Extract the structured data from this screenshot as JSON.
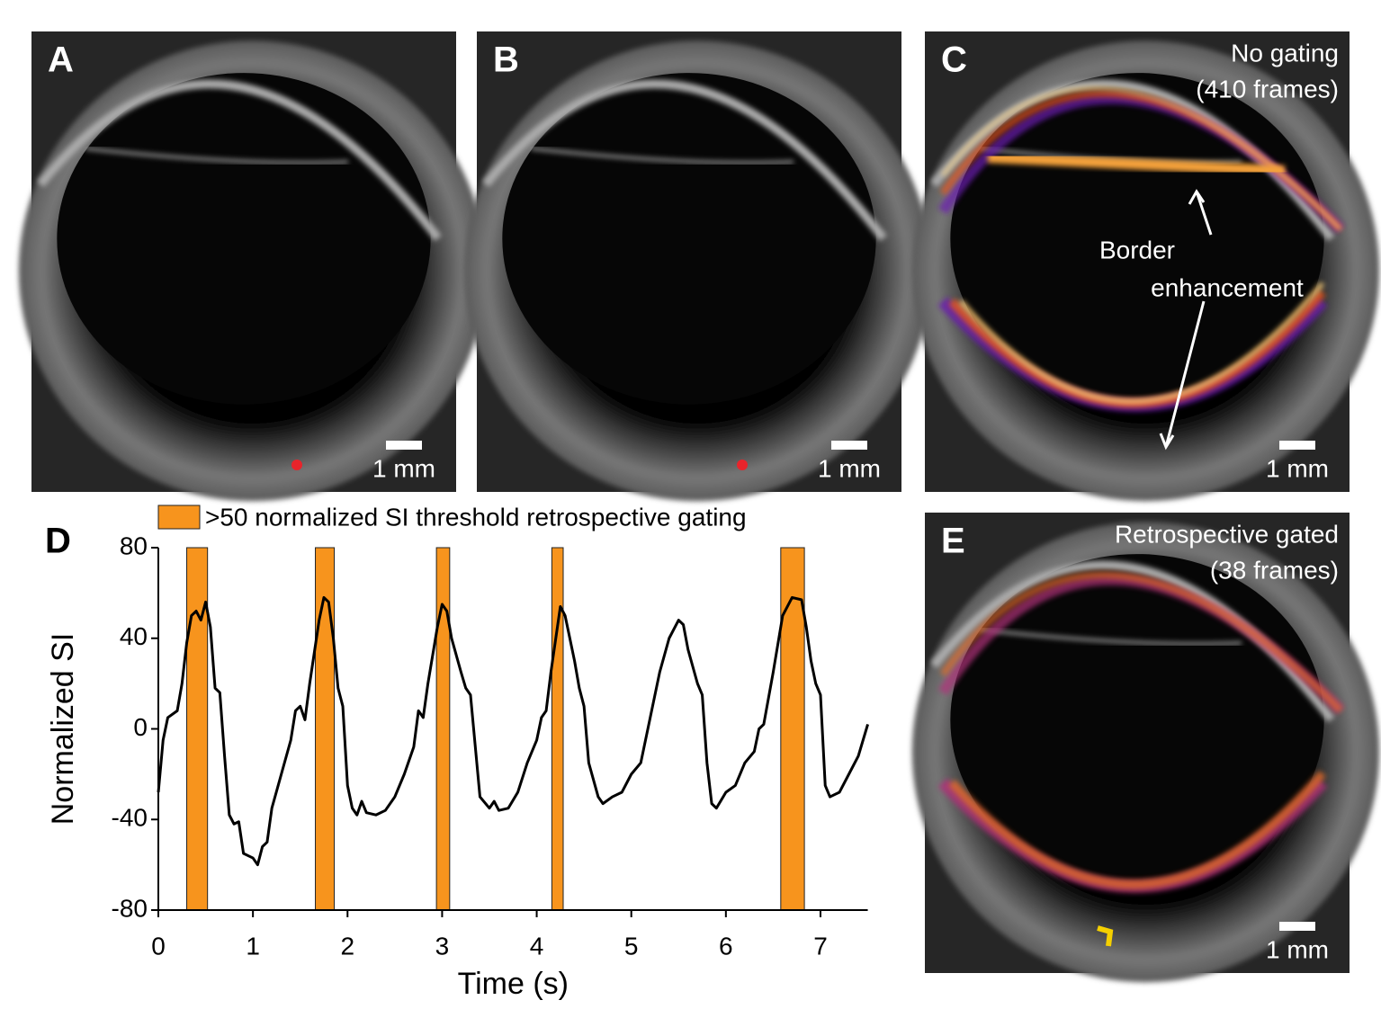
{
  "panels": [
    {
      "label": "A",
      "scale_bar": "1 mm"
    },
    {
      "label": "B",
      "scale_bar": "1 mm"
    },
    {
      "label": "C",
      "scale_bar": "1 mm",
      "annotation": [
        "No gating",
        "(410 frames)"
      ],
      "callout": [
        "Border",
        "enhancement"
      ]
    },
    {
      "label": "E",
      "scale_bar": "1 mm",
      "annotation": [
        "Retrospective gated",
        "(38 frames)"
      ]
    }
  ],
  "chart_data": {
    "type": "line",
    "panel_label": "D",
    "x_label": "Time (s)",
    "y_label": "Normalized SI",
    "bands": {
      "name": ">50 normalized SI threshold retrospective gating",
      "color": "#f7941d",
      "ranges": [
        [
          0.3,
          0.52
        ],
        [
          1.66,
          1.86
        ],
        [
          2.94,
          3.08
        ],
        [
          4.16,
          4.28
        ],
        [
          6.58,
          6.83
        ]
      ]
    },
    "x": [
      0,
      0.05,
      0.1,
      0.2,
      0.25,
      0.3,
      0.35,
      0.4,
      0.45,
      0.5,
      0.55,
      0.6,
      0.65,
      0.7,
      0.75,
      0.8,
      0.85,
      0.9,
      0.95,
      1.0,
      1.05,
      1.1,
      1.15,
      1.2,
      1.3,
      1.4,
      1.45,
      1.5,
      1.55,
      1.6,
      1.7,
      1.75,
      1.8,
      1.85,
      1.9,
      1.95,
      2.0,
      2.05,
      2.1,
      2.15,
      2.2,
      2.3,
      2.4,
      2.5,
      2.6,
      2.7,
      2.75,
      2.8,
      2.85,
      2.95,
      3.0,
      3.05,
      3.1,
      3.2,
      3.25,
      3.3,
      3.4,
      3.5,
      3.55,
      3.6,
      3.7,
      3.8,
      3.9,
      4.0,
      4.05,
      4.1,
      4.15,
      4.25,
      4.3,
      4.4,
      4.45,
      4.5,
      4.55,
      4.65,
      4.7,
      4.8,
      4.9,
      5.0,
      5.1,
      5.2,
      5.3,
      5.4,
      5.5,
      5.55,
      5.6,
      5.7,
      5.75,
      5.8,
      5.85,
      5.9,
      6.0,
      6.1,
      6.2,
      6.3,
      6.35,
      6.4,
      6.5,
      6.6,
      6.7,
      6.8,
      6.85,
      6.9,
      6.95,
      7.0,
      7.05,
      7.1,
      7.2,
      7.3,
      7.4,
      7.5
    ],
    "series": [
      {
        "color": "#000000",
        "values": [
          -28,
          -5,
          5,
          8,
          20,
          38,
          50,
          52,
          48,
          56,
          45,
          18,
          16,
          -12,
          -38,
          -42,
          -41,
          -55,
          -56,
          -57,
          -60,
          -52,
          -50,
          -35,
          -20,
          -5,
          8,
          10,
          4,
          20,
          48,
          58,
          56,
          40,
          18,
          10,
          -25,
          -35,
          -38,
          -32,
          -37,
          -38,
          -36,
          -30,
          -20,
          -8,
          8,
          5,
          20,
          45,
          55,
          52,
          40,
          25,
          18,
          15,
          -30,
          -35,
          -32,
          -36,
          -35,
          -28,
          -15,
          -5,
          5,
          8,
          25,
          54,
          50,
          30,
          18,
          10,
          -15,
          -30,
          -33,
          -30,
          -28,
          -20,
          -15,
          5,
          25,
          40,
          48,
          46,
          35,
          20,
          15,
          -15,
          -33,
          -35,
          -28,
          -25,
          -15,
          -10,
          0,
          2,
          25,
          50,
          58,
          57,
          45,
          30,
          20,
          15,
          -25,
          -30,
          -28,
          -20,
          -12,
          2
        ]
      }
    ],
    "xlim": [
      0,
      7.5
    ],
    "xticks": [
      0,
      1,
      2,
      3,
      4,
      5,
      6,
      7
    ],
    "ylim": [
      -80,
      80
    ],
    "yticks": [
      -80,
      -40,
      0,
      40,
      80
    ]
  }
}
